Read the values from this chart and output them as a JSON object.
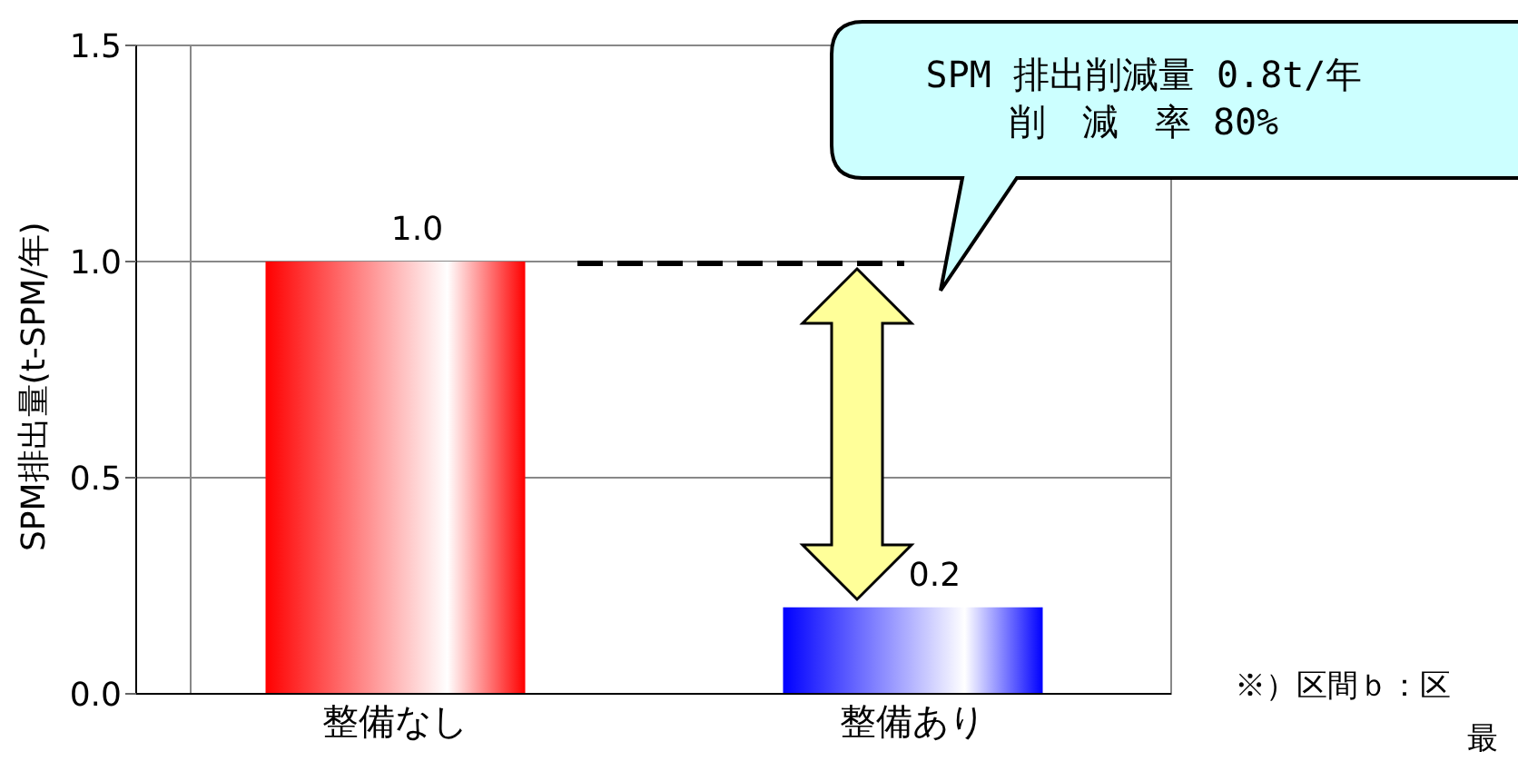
{
  "chart_data": {
    "type": "bar",
    "ylabel": "SPM排出量(t-SPM/年)",
    "categories": [
      "整備なし",
      "整備あり"
    ],
    "values": [
      1.0,
      0.2
    ],
    "value_labels": [
      "1.0",
      "0.2"
    ],
    "colors": [
      "#ff0000",
      "#0000ff"
    ],
    "ylim": [
      0,
      1.5
    ],
    "yticks": [
      {
        "value": 0,
        "label": "0.0"
      },
      {
        "value": 0.5,
        "label": "0.5"
      },
      {
        "value": 1.0,
        "label": "1.0"
      },
      {
        "value": 1.5,
        "label": "1.5"
      }
    ],
    "grid": "y",
    "annotations": [
      "SPM 排出削減量 0.8t/年",
      "削　減　率 80%",
      "※）区間ｂ：区",
      "最"
    ]
  }
}
